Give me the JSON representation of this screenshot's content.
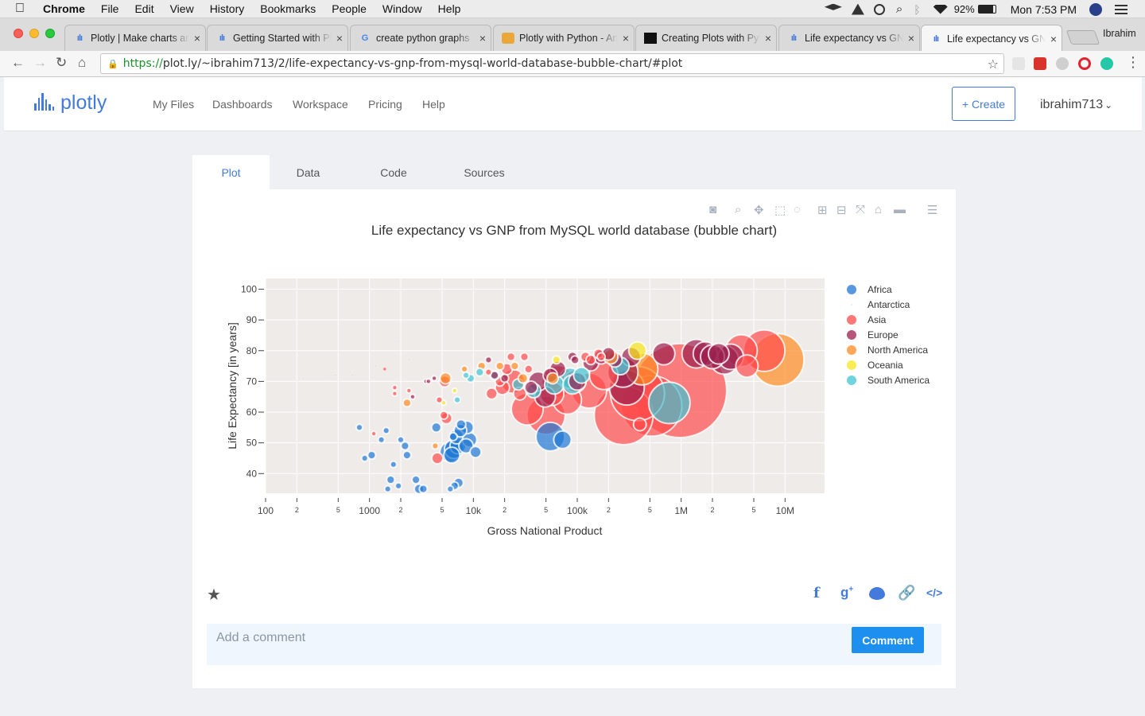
{
  "os_menubar": {
    "apple_icon": "apple-icon",
    "items": [
      "Chrome",
      "File",
      "Edit",
      "View",
      "History",
      "Bookmarks",
      "People",
      "Window",
      "Help"
    ],
    "battery": "92%",
    "clock": "Mon 7:53 PM"
  },
  "browser": {
    "profile": "Ibrahim",
    "tabs": [
      {
        "title": "Plotly | Make charts and",
        "favicon": "plotly-icon"
      },
      {
        "title": "Getting Started with Plotly",
        "favicon": "plotly-icon"
      },
      {
        "title": "create python graphs",
        "favicon": "google-icon"
      },
      {
        "title": "Plotly with Python - Anaconda",
        "favicon": "anaconda-icon"
      },
      {
        "title": "Creating Plots with Python",
        "favicon": "dark-site-icon"
      },
      {
        "title": "Life expectancy vs GNP",
        "favicon": "plotly-icon"
      },
      {
        "title": "Life expectancy vs GNP",
        "favicon": "plotly-icon"
      }
    ],
    "active_tab_index": 6,
    "url_protocol": "https://",
    "url_rest": "plot.ly/~ibrahim713/2/life-expectancy-vs-gnp-from-mysql-world-database-bubble-chart/#plot"
  },
  "site_nav": {
    "logo_text": "plotly",
    "links": [
      "My Files",
      "Dashboards",
      "Workspace",
      "Pricing",
      "Help"
    ],
    "create_label": "+ Create",
    "username": "ibrahim713"
  },
  "plot_tabs": [
    "Plot",
    "Data",
    "Code",
    "Sources"
  ],
  "active_plot_tab": "Plot",
  "modebar_icons": [
    "camera-icon",
    "zoom-icon",
    "pan-icon",
    "box-select-icon",
    "lasso-icon",
    "zoom-in-icon",
    "zoom-out-icon",
    "autoscale-icon",
    "reset-axes-icon",
    "compare-hover-icon",
    "closest-hover-icon"
  ],
  "chart_data": {
    "type": "scatter",
    "title": "Life expectancy vs GNP from MySQL world database (bubble chart)",
    "xlabel": "Gross National Product",
    "ylabel": "Life Expectancy [in years]",
    "x_scale": "log",
    "xlim": [
      100,
      24000000
    ],
    "ylim": [
      33.6,
      103.5
    ],
    "x_ticks": [
      {
        "v": 100,
        "label": "100",
        "major": true
      },
      {
        "v": 200,
        "label": "2",
        "major": false
      },
      {
        "v": 500,
        "label": "5",
        "major": false
      },
      {
        "v": 1000,
        "label": "1000",
        "major": true
      },
      {
        "v": 2000,
        "label": "2",
        "major": false
      },
      {
        "v": 5000,
        "label": "5",
        "major": false
      },
      {
        "v": 10000,
        "label": "10k",
        "major": true
      },
      {
        "v": 20000,
        "label": "2",
        "major": false
      },
      {
        "v": 50000,
        "label": "5",
        "major": false
      },
      {
        "v": 100000,
        "label": "100k",
        "major": true
      },
      {
        "v": 200000,
        "label": "2",
        "major": false
      },
      {
        "v": 500000,
        "label": "5",
        "major": false
      },
      {
        "v": 1000000,
        "label": "1M",
        "major": true
      },
      {
        "v": 2000000,
        "label": "2",
        "major": false
      },
      {
        "v": 5000000,
        "label": "5",
        "major": false
      },
      {
        "v": 10000000,
        "label": "10M",
        "major": true
      }
    ],
    "y_ticks": [
      40,
      50,
      60,
      70,
      80,
      90,
      100
    ],
    "legend_position": "right",
    "grid": true,
    "series": [
      {
        "name": "Africa",
        "color": "#1f77d4",
        "points": [
          [
            800,
            55,
            4
          ],
          [
            1450,
            54,
            4
          ],
          [
            1050,
            46,
            5
          ],
          [
            900,
            45,
            4
          ],
          [
            1300,
            51,
            4
          ],
          [
            2000,
            51,
            4
          ],
          [
            2200,
            49,
            5
          ],
          [
            1700,
            43,
            4
          ],
          [
            1600,
            38,
            5
          ],
          [
            1900,
            36,
            4
          ],
          [
            1500,
            35,
            4
          ],
          [
            2300,
            46,
            5
          ],
          [
            2800,
            38,
            5
          ],
          [
            3000,
            35,
            6
          ],
          [
            3300,
            35,
            5
          ],
          [
            4400,
            55,
            6
          ],
          [
            6400,
            52,
            5
          ],
          [
            7600,
            56,
            6
          ],
          [
            8700,
            55,
            8
          ],
          [
            7500,
            54,
            8
          ],
          [
            6900,
            52,
            9
          ],
          [
            7100,
            49,
            10
          ],
          [
            6500,
            48,
            12
          ],
          [
            6000,
            47,
            13
          ],
          [
            9200,
            51,
            9
          ],
          [
            8500,
            49,
            9
          ],
          [
            6200,
            46,
            10
          ],
          [
            10500,
            47,
            7
          ],
          [
            6600,
            36,
            5
          ],
          [
            7200,
            37,
            6
          ],
          [
            6000,
            35,
            4
          ],
          [
            55000,
            52,
            18
          ],
          [
            72000,
            51,
            11
          ]
        ]
      },
      {
        "name": "Antarctica",
        "color": "#c8c8c8",
        "points": [
          [
            230,
            71,
            1
          ],
          [
            380,
            71,
            1
          ],
          [
            470,
            72,
            1
          ],
          [
            680,
            72,
            1
          ],
          [
            1150,
            75,
            1
          ],
          [
            1900,
            83,
            1
          ],
          [
            2400,
            77,
            1
          ]
        ]
      },
      {
        "name": "Asia",
        "color": "#ff4b4b",
        "points": [
          [
            1100,
            53,
            3
          ],
          [
            1400,
            74,
            2
          ],
          [
            1750,
            66,
            3
          ],
          [
            1750,
            68,
            3
          ],
          [
            2400,
            67,
            3
          ],
          [
            5300,
            70,
            7
          ],
          [
            4700,
            64,
            4
          ],
          [
            5200,
            59,
            5
          ],
          [
            5500,
            58,
            7
          ],
          [
            4500,
            45,
            7
          ],
          [
            14000,
            73,
            4
          ],
          [
            15000,
            66,
            7
          ],
          [
            18000,
            70,
            6
          ],
          [
            21000,
            74,
            7
          ],
          [
            19000,
            68,
            9
          ],
          [
            28000,
            66,
            8
          ],
          [
            24000,
            70,
            15
          ],
          [
            33000,
            61,
            20
          ],
          [
            50000,
            59,
            24
          ],
          [
            57000,
            66,
            15
          ],
          [
            65000,
            70,
            20
          ],
          [
            80000,
            64,
            18
          ],
          [
            95000,
            70,
            14
          ],
          [
            130000,
            67,
            22
          ],
          [
            180000,
            72,
            18
          ],
          [
            280000,
            59,
            37
          ],
          [
            380000,
            66,
            34
          ],
          [
            400000,
            56,
            8
          ],
          [
            520000,
            62,
            38
          ],
          [
            970000,
            67,
            59
          ],
          [
            3800000,
            80,
            20
          ],
          [
            4300000,
            75,
            14
          ],
          [
            6300000,
            80,
            26
          ],
          [
            23000,
            78,
            5
          ],
          [
            31000,
            78,
            5
          ],
          [
            34000,
            74,
            5
          ],
          [
            120000,
            78,
            6
          ],
          [
            135000,
            77,
            6
          ],
          [
            160000,
            79,
            6
          ],
          [
            170000,
            78,
            5
          ]
        ]
      },
      {
        "name": "Europe",
        "color": "#9b1f4e",
        "points": [
          [
            3500,
            70,
            3
          ],
          [
            3700,
            70,
            3
          ],
          [
            4200,
            71,
            3
          ],
          [
            2600,
            65,
            3
          ],
          [
            20000,
            71,
            5
          ],
          [
            36000,
            68,
            8
          ],
          [
            42000,
            70,
            12
          ],
          [
            49000,
            65,
            13
          ],
          [
            55000,
            72,
            9
          ],
          [
            65000,
            74,
            10
          ],
          [
            100000,
            70,
            11
          ],
          [
            135000,
            76,
            10
          ],
          [
            170000,
            78,
            9
          ],
          [
            200000,
            79,
            8
          ],
          [
            230000,
            77,
            9
          ],
          [
            300000,
            68,
            22
          ],
          [
            275000,
            73,
            19
          ],
          [
            330000,
            78,
            12
          ],
          [
            680000,
            79,
            14
          ],
          [
            1400000,
            79,
            18
          ],
          [
            1700000,
            79,
            15
          ],
          [
            2000000,
            78,
            15
          ],
          [
            2300000,
            79,
            13
          ],
          [
            3000000,
            78,
            16
          ],
          [
            2600000,
            77,
            18
          ],
          [
            14000,
            77,
            4
          ],
          [
            16000,
            72,
            5
          ],
          [
            90000,
            78,
            6
          ],
          [
            95000,
            77,
            5
          ]
        ]
      },
      {
        "name": "North America",
        "color": "#ff8b22",
        "points": [
          [
            2300,
            63,
            5
          ],
          [
            4300,
            49,
            4
          ],
          [
            5400,
            71,
            7
          ],
          [
            8200,
            74,
            4
          ],
          [
            12000,
            75,
            5
          ],
          [
            18000,
            75,
            5
          ],
          [
            25000,
            75,
            5
          ],
          [
            30000,
            71,
            6
          ],
          [
            58000,
            71,
            7
          ],
          [
            210000,
            78,
            9
          ],
          [
            420000,
            74,
            20
          ],
          [
            8500000,
            77,
            33
          ]
        ]
      },
      {
        "name": "Oceania",
        "color": "#f7e51b",
        "points": [
          [
            5200,
            63,
            3
          ],
          [
            6600,
            67,
            3
          ],
          [
            380000,
            80,
            11
          ],
          [
            63000,
            77,
            5
          ]
        ]
      },
      {
        "name": "South America",
        "color": "#40c4d3",
        "points": [
          [
            9400,
            71,
            5
          ],
          [
            11500,
            73,
            5
          ],
          [
            16000,
            72,
            6
          ],
          [
            27000,
            69,
            7
          ],
          [
            38000,
            67,
            9
          ],
          [
            60000,
            69,
            12
          ],
          [
            85000,
            71,
            13
          ],
          [
            90000,
            69,
            12
          ],
          [
            110000,
            72,
            10
          ],
          [
            260000,
            75,
            11
          ],
          [
            770000,
            63,
            26
          ],
          [
            7000,
            64,
            4
          ],
          [
            8500,
            72,
            4
          ]
        ]
      }
    ]
  },
  "share_icons": [
    "facebook-icon",
    "google-plus-icon",
    "twitter-icon",
    "link-icon",
    "embed-icon"
  ],
  "comment": {
    "placeholder": "Add a comment",
    "button_label": "Comment"
  }
}
